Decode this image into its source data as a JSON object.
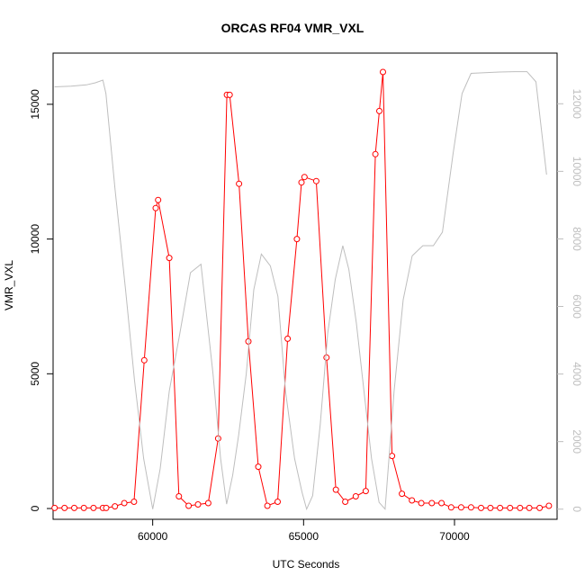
{
  "chart_data": {
    "type": "line",
    "title": "ORCAS RF04 VMR_VXL",
    "xlabel": "UTC Seconds",
    "ylabel": "VMR_VXL",
    "xlim": [
      56700,
      73400
    ],
    "ylim": [
      -400,
      16900
    ],
    "y2lim": [
      -300,
      13500
    ],
    "x_ticks": [
      60000,
      65000,
      70000
    ],
    "y_ticks": [
      0,
      5000,
      10000,
      15000
    ],
    "y2_ticks": [
      0,
      2000,
      4000,
      6000,
      8000,
      10000,
      12000
    ],
    "colors": {
      "primary": "#ff0000",
      "secondary": "#bebebe",
      "axis": "#000000"
    },
    "series": [
      {
        "axis": "left",
        "marker": "open-circle",
        "x": [
          56750,
          57080,
          57400,
          57720,
          58040,
          58350,
          58460,
          58750,
          59060,
          59380,
          59720,
          60100,
          60180,
          60550,
          60870,
          61190,
          61500,
          61840,
          62170,
          62460,
          62550,
          62860,
          63170,
          63500,
          63800,
          64140,
          64470,
          64780,
          64930,
          65030,
          65420,
          65760,
          66070,
          66380,
          66730,
          67060,
          67380,
          67510,
          67630,
          67930,
          68260,
          68590,
          68900,
          69250,
          69570,
          69890,
          70220,
          70550,
          70880,
          71190,
          71510,
          71840,
          72170,
          72480,
          72820,
          73130
        ],
        "y": [
          20,
          20,
          20,
          20,
          20,
          20,
          20,
          80,
          200,
          250,
          5500,
          11150,
          11450,
          9300,
          450,
          100,
          150,
          200,
          2600,
          15350,
          15350,
          12050,
          6200,
          1550,
          100,
          250,
          6300,
          10000,
          12100,
          12300,
          12150,
          5600,
          700,
          250,
          450,
          650,
          13150,
          14750,
          16200,
          1950,
          550,
          300,
          200,
          200,
          200,
          40,
          40,
          40,
          20,
          20,
          20,
          20,
          20,
          20,
          20,
          100
        ]
      },
      {
        "axis": "right",
        "marker": "none",
        "x": [
          56750,
          57300,
          57800,
          58100,
          58350,
          58450,
          58750,
          59100,
          59400,
          59700,
          60000,
          60250,
          60550,
          60900,
          61250,
          61600,
          62000,
          62250,
          62450,
          62650,
          62850,
          63100,
          63350,
          63600,
          63900,
          64150,
          64400,
          64700,
          64950,
          65100,
          65300,
          65550,
          65800,
          66050,
          66300,
          66500,
          66750,
          67000,
          67250,
          67500,
          67700,
          68000,
          68300,
          68600,
          68950,
          69300,
          69600,
          69950,
          70250,
          70550,
          71000,
          71500,
          72000,
          72400,
          72700,
          73050
        ],
        "y": [
          12500,
          12520,
          12560,
          12620,
          12700,
          12300,
          9500,
          6500,
          3800,
          1500,
          0,
          1200,
          3500,
          5200,
          7000,
          7250,
          4000,
          1500,
          150,
          1000,
          2200,
          4000,
          6500,
          7550,
          7200,
          6300,
          3500,
          1500,
          500,
          0,
          400,
          2500,
          5200,
          6800,
          7800,
          7100,
          5500,
          3500,
          1500,
          200,
          0,
          3500,
          6200,
          7500,
          7800,
          7800,
          8200,
          10500,
          12300,
          12900,
          12920,
          12940,
          12950,
          12950,
          12650,
          9900
        ]
      }
    ]
  }
}
